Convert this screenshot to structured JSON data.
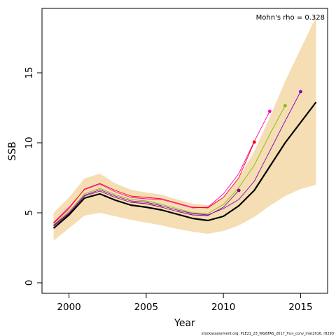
{
  "chart_data": {
    "type": "line",
    "title": "",
    "xlabel": "Year",
    "ylabel": "SSB",
    "xlim": [
      1998.25,
      2016.75
    ],
    "ylim": [
      -0.75,
      19.6
    ],
    "x_ticks": [
      2000,
      2005,
      2010,
      2015
    ],
    "y_ticks": [
      0,
      5,
      10,
      15
    ],
    "grid": false,
    "annotation": "Mohn's rho = 0.328",
    "footer": "stockassessment.org, PLE21_23_WGBFAS_2017_frun_conv_mat2016, r8293",
    "confidence_band": {
      "color": "#f5deb3",
      "x": [
        1999,
        2000,
        2001,
        2002,
        2003,
        2004,
        2005,
        2006,
        2007,
        2008,
        2009,
        2010,
        2011,
        2012,
        2013,
        2014,
        2015,
        2016
      ],
      "lower": [
        3.0,
        3.9,
        4.8,
        5.0,
        4.75,
        4.5,
        4.3,
        4.1,
        3.85,
        3.65,
        3.5,
        3.7,
        4.1,
        4.7,
        5.5,
        6.2,
        6.7,
        7.0
      ],
      "upper": [
        5.0,
        6.1,
        7.45,
        7.8,
        7.1,
        6.65,
        6.45,
        6.3,
        5.95,
        5.65,
        5.55,
        6.1,
        7.5,
        9.4,
        11.8,
        14.4,
        16.7,
        19.0
      ]
    },
    "series": [
      {
        "color": "#000000",
        "x": [
          1999,
          2000,
          2001,
          2002,
          2003,
          2004,
          2005,
          2006,
          2007,
          2008,
          2009,
          2010,
          2011,
          2012,
          2013,
          2014,
          2015,
          2016
        ],
        "values": [
          3.9,
          4.85,
          6.05,
          6.35,
          5.9,
          5.55,
          5.4,
          5.2,
          4.9,
          4.6,
          4.45,
          4.75,
          5.5,
          6.6,
          8.3,
          10.0,
          11.45,
          12.9
        ]
      },
      {
        "color": "#ff00c0",
        "x": [
          1999,
          2000,
          2001,
          2002,
          2003,
          2004,
          2005,
          2006,
          2007,
          2008,
          2009,
          2010,
          2011,
          2012,
          2013
        ],
        "values": [
          4.3,
          5.4,
          6.65,
          7.05,
          6.5,
          6.1,
          6.0,
          5.95,
          5.65,
          5.35,
          5.4,
          6.35,
          7.8,
          10.1,
          12.25
        ]
      },
      {
        "color": "#ff0000",
        "x": [
          1999,
          2000,
          2001,
          2002,
          2003,
          2004,
          2005,
          2006,
          2007,
          2008,
          2009,
          2010,
          2011,
          2012
        ],
        "values": [
          4.25,
          5.3,
          6.7,
          7.1,
          6.6,
          6.2,
          6.1,
          6.0,
          5.7,
          5.4,
          5.35,
          6.1,
          7.5,
          10.05
        ]
      },
      {
        "color": "#80c000",
        "x": [
          1999,
          2000,
          2001,
          2002,
          2003,
          2004,
          2005,
          2006,
          2007,
          2008,
          2009,
          2010,
          2011,
          2012,
          2013,
          2014
        ],
        "values": [
          4.15,
          5.1,
          6.35,
          6.75,
          6.3,
          5.95,
          5.85,
          5.6,
          5.3,
          5.0,
          4.95,
          5.6,
          6.8,
          8.4,
          10.6,
          12.65
        ]
      },
      {
        "color": "#800080",
        "x": [
          1999,
          2000,
          2001,
          2002,
          2003,
          2004,
          2005,
          2006,
          2007,
          2008,
          2009,
          2010,
          2011
        ],
        "values": [
          4.05,
          4.95,
          6.2,
          6.55,
          6.1,
          5.75,
          5.65,
          5.4,
          5.1,
          4.85,
          4.8,
          5.4,
          6.6
        ]
      },
      {
        "color": "#8000c0",
        "x": [
          1999,
          2000,
          2001,
          2002,
          2003,
          2004,
          2005,
          2006,
          2007,
          2008,
          2009,
          2010,
          2011,
          2012,
          2013,
          2014,
          2015
        ],
        "values": [
          4.1,
          5.0,
          6.25,
          6.65,
          6.2,
          5.85,
          5.75,
          5.5,
          5.2,
          4.95,
          4.85,
          5.3,
          5.95,
          7.25,
          9.4,
          11.55,
          13.65
        ]
      }
    ]
  }
}
